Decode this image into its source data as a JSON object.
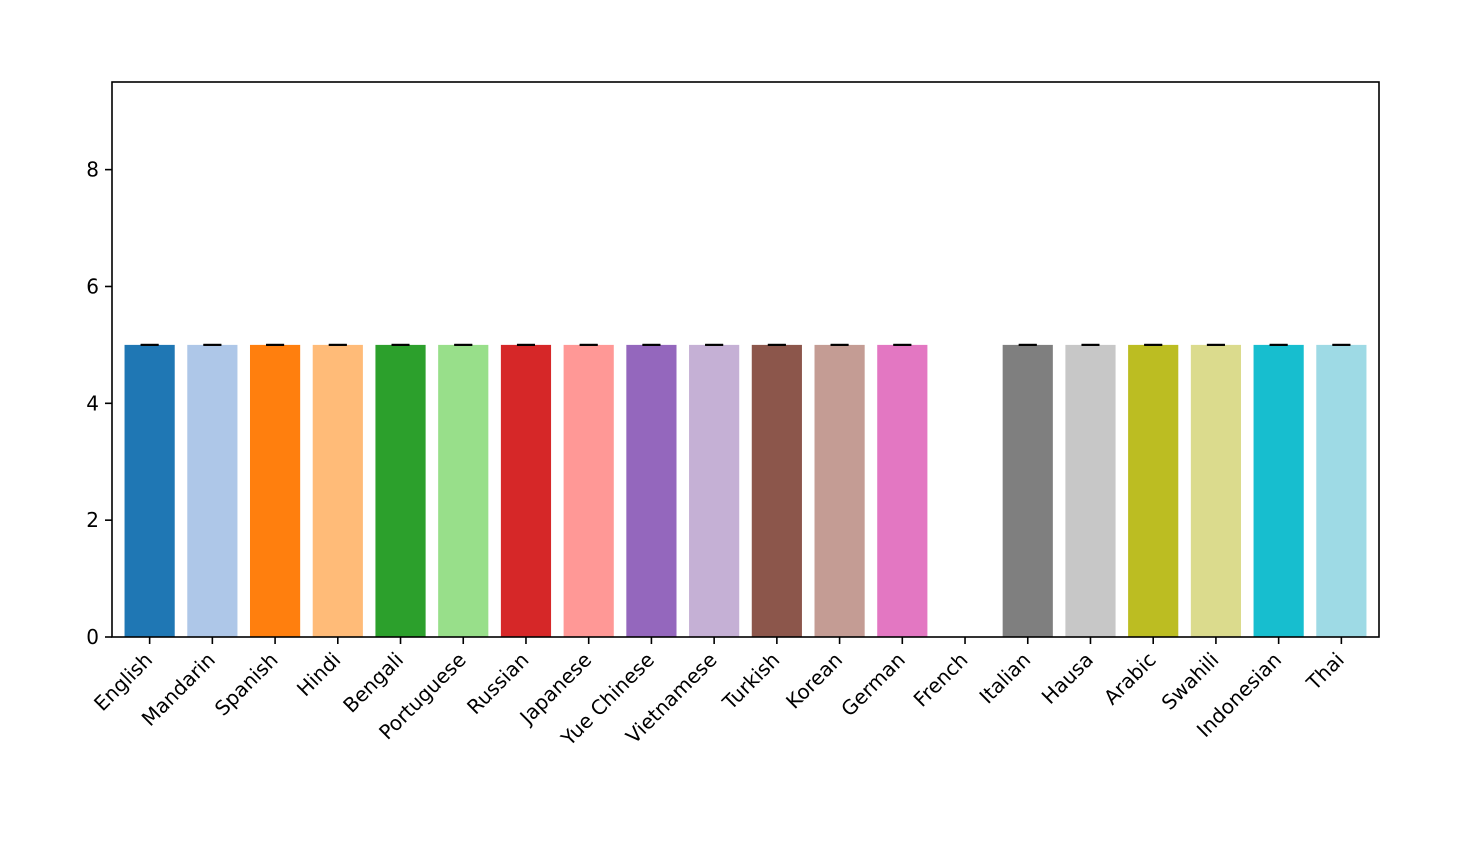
{
  "chart_data": {
    "type": "bar",
    "title": "",
    "xlabel": "",
    "ylabel": "",
    "ylim": [
      0,
      9.5
    ],
    "yticks": [
      0,
      2,
      4,
      6,
      8
    ],
    "grid": false,
    "categories": [
      "English",
      "Mandarin",
      "Spanish",
      "Hindi",
      "Bengali",
      "Portuguese",
      "Russian",
      "Japanese",
      "Yue Chinese",
      "Vietnamese",
      "Turkish",
      "Korean",
      "German",
      "French",
      "Italian",
      "Hausa",
      "Arabic",
      "Swahili",
      "Indonesian",
      "Thai"
    ],
    "values": [
      5,
      5,
      5,
      5,
      5,
      5,
      5,
      5,
      5,
      5,
      5,
      5,
      5,
      0,
      5,
      5,
      5,
      5,
      5,
      5
    ],
    "error": [
      0,
      0,
      0,
      0,
      0,
      0,
      0,
      0,
      0,
      0,
      0,
      0,
      0,
      0,
      0,
      0,
      0,
      0,
      0,
      0
    ],
    "colors": [
      "#1f77b4",
      "#aec7e8",
      "#ff7f0e",
      "#ffbb78",
      "#2ca02c",
      "#98df8a",
      "#d62728",
      "#ff9896",
      "#9467bd",
      "#c5b0d5",
      "#8c564b",
      "#c49c94",
      "#e377c2",
      "#f7b6d2",
      "#7f7f7f",
      "#c7c7c7",
      "#bcbd22",
      "#dbdb8d",
      "#17becf",
      "#9edae5"
    ]
  }
}
